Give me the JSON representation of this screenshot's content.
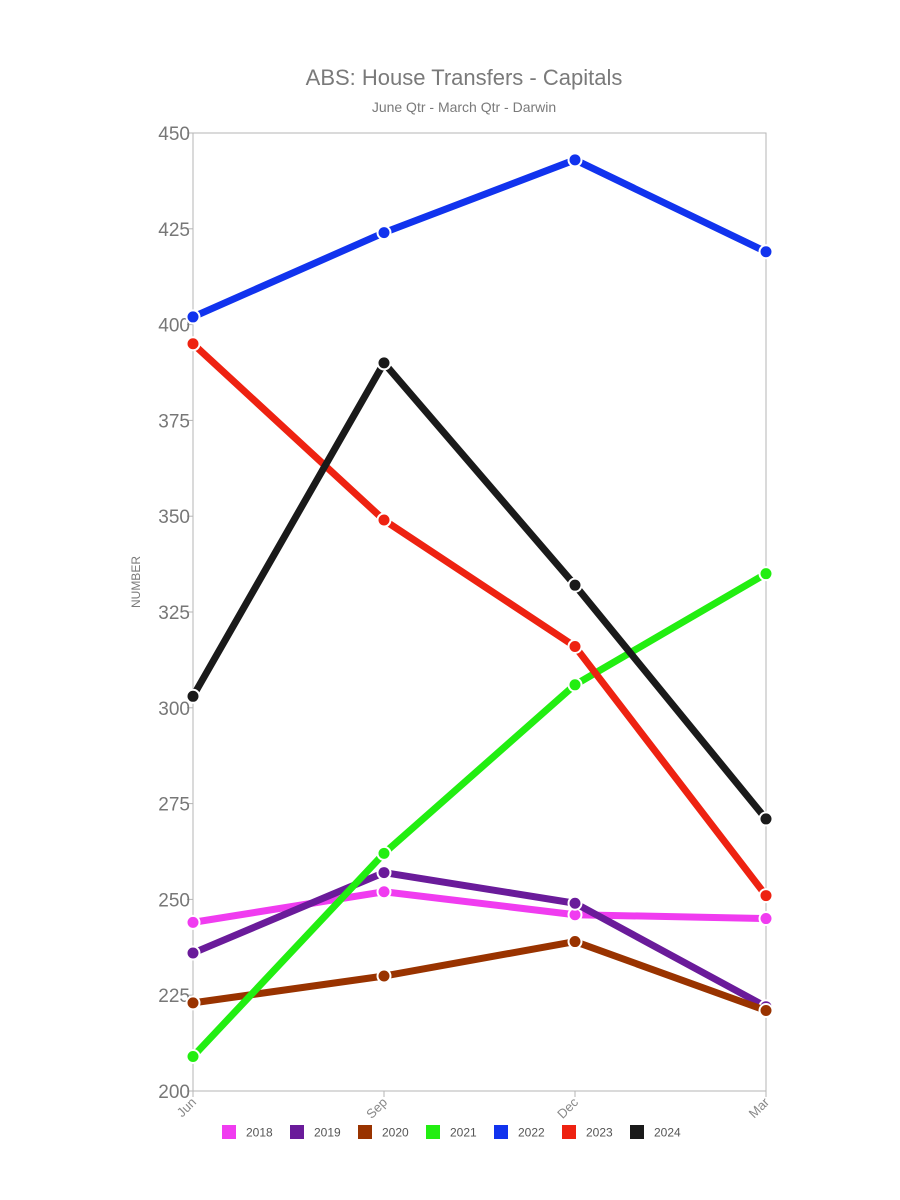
{
  "chart_data": {
    "type": "line",
    "title": "ABS: House Transfers - Capitals",
    "subtitle": "June Qtr - March Qtr - Darwin",
    "xlabel": "",
    "ylabel": "NUMBER",
    "categories": [
      "Jun",
      "Sep",
      "Dec",
      "Mar"
    ],
    "ylim": [
      200,
      450
    ],
    "yticks": [
      200,
      225,
      250,
      275,
      300,
      325,
      350,
      375,
      400,
      425,
      450
    ],
    "grid": false,
    "legend_position": "bottom",
    "series": [
      {
        "name": "2018",
        "color": "#f03cf0",
        "values": [
          244,
          252,
          246,
          245
        ]
      },
      {
        "name": "2019",
        "color": "#6a1b9a",
        "values": [
          236,
          257,
          249,
          222
        ]
      },
      {
        "name": "2020",
        "color": "#993300",
        "values": [
          223,
          230,
          239,
          221
        ]
      },
      {
        "name": "2021",
        "color": "#22ee11",
        "values": [
          209,
          262,
          306,
          335
        ]
      },
      {
        "name": "2022",
        "color": "#1133ee",
        "values": [
          402,
          424,
          443,
          419
        ]
      },
      {
        "name": "2023",
        "color": "#ee2211",
        "values": [
          395,
          349,
          316,
          251
        ]
      },
      {
        "name": "2024",
        "color": "#1a1a1a",
        "values": [
          303,
          390,
          332,
          271
        ]
      }
    ]
  }
}
